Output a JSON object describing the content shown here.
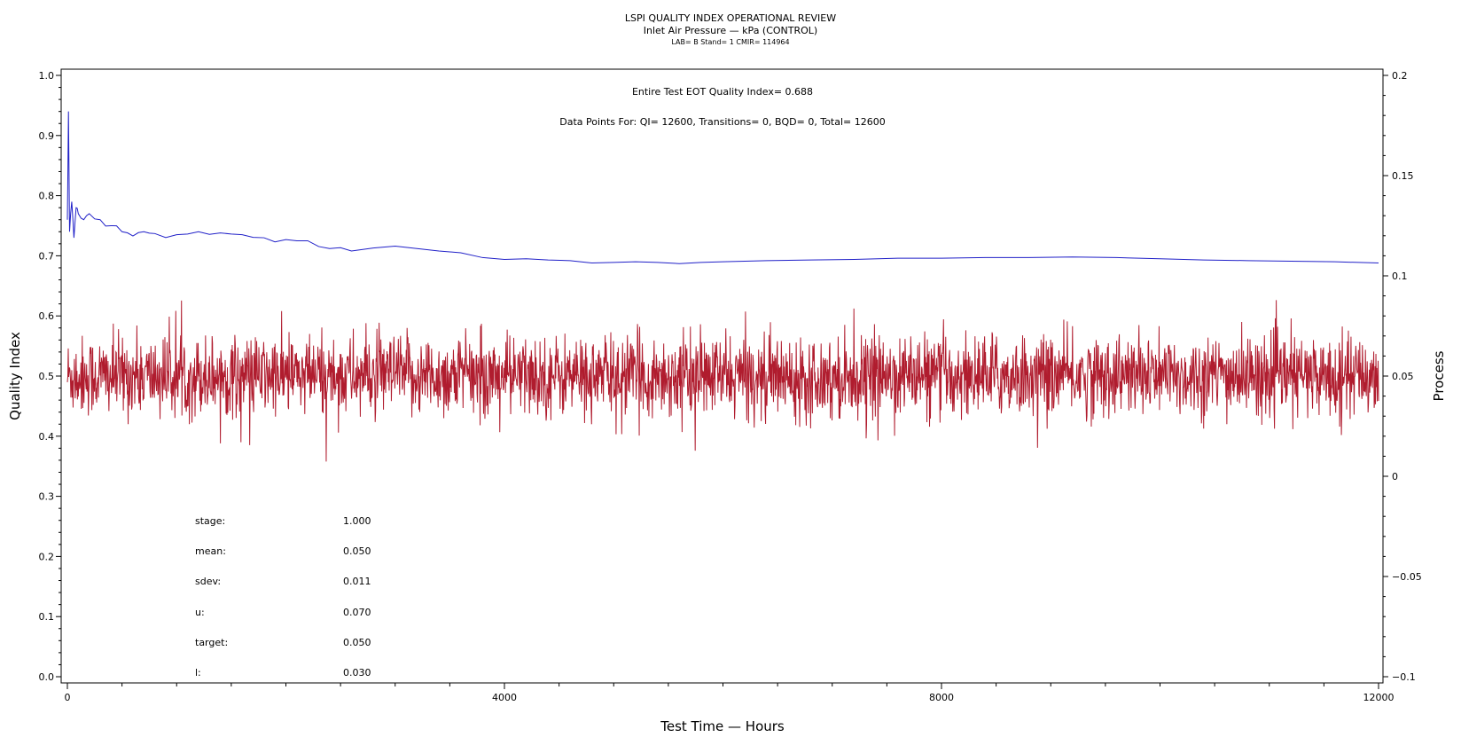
{
  "chart_data": {
    "type": "line",
    "title": "LSPI QUALITY INDEX OPERATIONAL REVIEW",
    "subtitle": "Inlet Air Pressure — kPa (CONTROL)",
    "subtitle2": "LAB= B Stand= 1 CMIR= 114964",
    "xlabel": "Test Time — Hours",
    "ylabel_left": "Quality Index",
    "ylabel_right": "Process",
    "xlim": [
      0,
      12000
    ],
    "ylim_left": [
      0.0,
      1.0
    ],
    "ylim_right": [
      -0.1,
      0.2
    ],
    "x_ticks": [
      "0",
      "4000",
      "8000",
      "12000"
    ],
    "y_left_ticks": [
      "0.0",
      "0.1",
      "0.2",
      "0.3",
      "0.4",
      "0.5",
      "0.6",
      "0.7",
      "0.8",
      "0.9",
      "1.0"
    ],
    "y_right_ticks": [
      "−0.1",
      "−0.05",
      "0",
      "0.05",
      "0.1",
      "0.15",
      "0.2"
    ],
    "annotation_qi": "Entire Test EOT Quality Index=   0.688",
    "annotation_points": "Data Points For: QI= 12600, Transitions=     0, BQD=     0, Total= 12600",
    "stats": [
      {
        "label": "stage:",
        "value": "1.000"
      },
      {
        "label": "mean:",
        "value": "0.050"
      },
      {
        "label": "sdev:",
        "value": "0.011"
      },
      {
        "label": "u:",
        "value": "0.070"
      },
      {
        "label": "target:",
        "value": "0.050"
      },
      {
        "label": "l:",
        "value": "0.030"
      }
    ],
    "series": [
      {
        "axis": "left",
        "color": "#2020c8",
        "x": [
          0,
          10,
          20,
          40,
          60,
          80,
          100,
          150,
          200,
          300,
          400,
          500,
          600,
          700,
          800,
          1000,
          1200,
          1400,
          1600,
          1800,
          2000,
          2200,
          2400,
          2600,
          2800,
          3000,
          3200,
          3400,
          3600,
          3800,
          4000,
          4200,
          4400,
          4600,
          4800,
          5000,
          5200,
          5400,
          5600,
          5800,
          6000,
          6400,
          6800,
          7200,
          7600,
          8000,
          8400,
          8800,
          9200,
          9600,
          10000,
          10400,
          10800,
          11200,
          11600,
          12000
        ],
        "values": [
          0.76,
          0.94,
          0.74,
          0.79,
          0.73,
          0.78,
          0.77,
          0.76,
          0.77,
          0.76,
          0.75,
          0.74,
          0.733,
          0.74,
          0.737,
          0.735,
          0.74,
          0.738,
          0.735,
          0.73,
          0.727,
          0.725,
          0.712,
          0.708,
          0.713,
          0.716,
          0.712,
          0.708,
          0.705,
          0.697,
          0.694,
          0.695,
          0.693,
          0.692,
          0.688,
          0.689,
          0.69,
          0.689,
          0.687,
          0.689,
          0.69,
          0.692,
          0.693,
          0.694,
          0.696,
          0.696,
          0.697,
          0.697,
          0.698,
          0.697,
          0.695,
          0.693,
          0.692,
          0.691,
          0.69,
          0.688
        ]
      },
      {
        "axis": "right",
        "color": "#b01c2e",
        "mean": 0.05,
        "sdev": 0.011,
        "n_points": 12600,
        "range_min": 0.0,
        "range_max": 0.095
      }
    ]
  }
}
